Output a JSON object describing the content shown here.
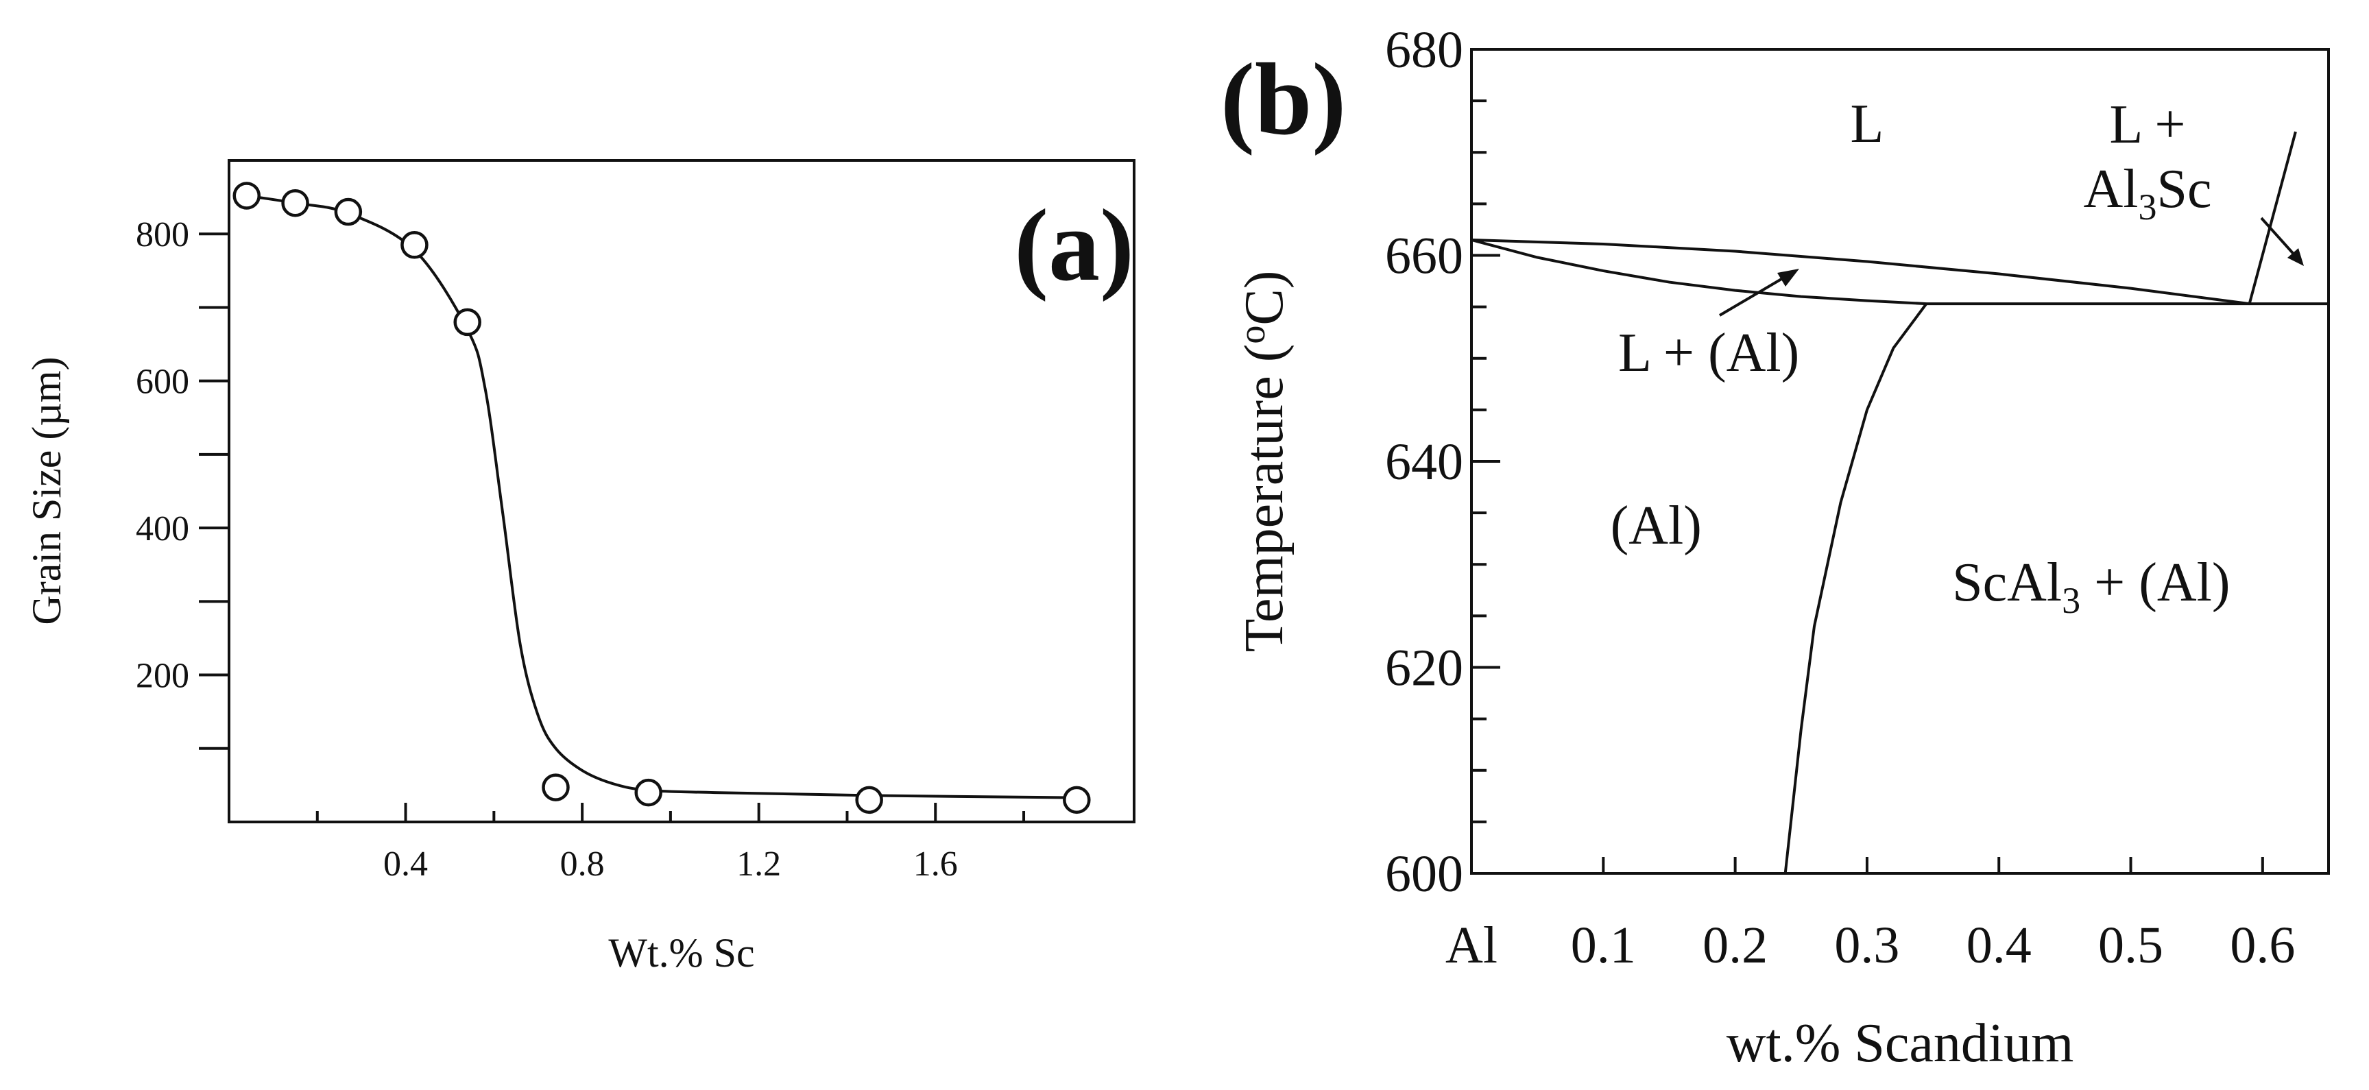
{
  "chart_data": [
    {
      "panel_label": "(a)",
      "type": "scatter",
      "xlabel": "Wt.% Sc",
      "ylabel": "Grain Size (µm)",
      "xlim": [
        0,
        2.05
      ],
      "ylim": [
        0,
        900
      ],
      "xticks": [
        0.4,
        0.8,
        1.2,
        1.6
      ],
      "xtick_labels": [
        "0.4",
        "0.8",
        "1.2",
        "1.6"
      ],
      "xticks_minor": [
        0.2,
        0.6,
        1.0,
        1.4,
        1.8
      ],
      "yticks": [
        200,
        400,
        600,
        800
      ],
      "ytick_labels": [
        "200",
        "400",
        "600",
        "800"
      ],
      "yticks_minor": [
        100,
        300,
        500,
        700
      ],
      "series": [
        {
          "marker": "open-circle",
          "x": [
            0.04,
            0.15,
            0.27,
            0.42,
            0.54,
            0.74,
            0.95,
            1.45,
            1.92
          ],
          "y": [
            852,
            842,
            830,
            785,
            680,
            47,
            40,
            30,
            30
          ]
        }
      ],
      "fit_curve": {
        "x": [
          0.04,
          0.15,
          0.27,
          0.42,
          0.54,
          0.58,
          0.62,
          0.66,
          0.7,
          0.74,
          0.8,
          0.87,
          0.95,
          1.1,
          1.45,
          1.92
        ],
        "y": [
          852,
          842,
          828,
          778,
          670,
          590,
          420,
          240,
          145,
          100,
          70,
          52,
          43,
          40,
          36,
          33
        ]
      },
      "grid": false
    },
    {
      "panel_label": "(b)",
      "type": "line",
      "xlabel": "wt.% Scandium",
      "ylabel": "Temperature (°C)",
      "ylabel_parts": [
        "Temperature (",
        "o",
        "C)"
      ],
      "xlim": [
        0,
        0.65
      ],
      "ylim": [
        600,
        680
      ],
      "xticks": [
        0,
        0.1,
        0.2,
        0.3,
        0.4,
        0.5,
        0.6
      ],
      "xtick_labels": [
        "Al",
        "0.1",
        "0.2",
        "0.3",
        "0.4",
        "0.5",
        "0.6"
      ],
      "yticks": [
        600,
        620,
        640,
        660,
        680
      ],
      "ytick_labels": [
        "600",
        "620",
        "640",
        "660",
        "680"
      ],
      "yticks_minor": [
        605,
        610,
        615,
        625,
        630,
        635,
        645,
        650,
        655,
        665,
        670,
        675
      ],
      "series": [
        {
          "x": [
            0,
            0.1,
            0.2,
            0.3,
            0.4,
            0.5,
            0.59
          ],
          "y": [
            661.5,
            661.1,
            660.4,
            659.4,
            658.2,
            656.8,
            655.3
          ]
        },
        {
          "x": [
            0,
            0.05,
            0.1,
            0.15,
            0.2,
            0.25,
            0.3,
            0.345
          ],
          "y": [
            661.5,
            659.8,
            658.5,
            657.4,
            656.6,
            656.0,
            655.6,
            655.3
          ]
        },
        {
          "x": [
            0.345,
            0.65
          ],
          "y": [
            655.3,
            655.3
          ]
        },
        {
          "x": [
            0.345,
            0.32,
            0.3,
            0.28,
            0.26,
            0.25,
            0.238
          ],
          "y": [
            655.3,
            651,
            645,
            636,
            624,
            614,
            600
          ]
        },
        {
          "x": [
            0.59,
            0.625
          ],
          "y": [
            655.3,
            672
          ]
        }
      ],
      "annotations": [
        {
          "text": "L",
          "x": 0.3,
          "y": 671
        },
        {
          "text": "L + (Al)",
          "x": 0.18,
          "y": 648.8
        },
        {
          "text": "(Al)",
          "x": 0.14,
          "y": 632
        },
        {
          "text": "ScAl₃ + (Al)",
          "x": 0.47,
          "y": 626.5
        }
      ],
      "annotation_parts": {
        "l_al3sc_line1": "L +",
        "l_al3sc_line2_pre": "Al",
        "l_al3sc_line2_sub": "3",
        "l_al3sc_line2_post": "Sc",
        "scal3_pre": "ScAl",
        "scal3_sub": "3",
        "scal3_post": " + (Al)"
      },
      "grid": false
    }
  ]
}
